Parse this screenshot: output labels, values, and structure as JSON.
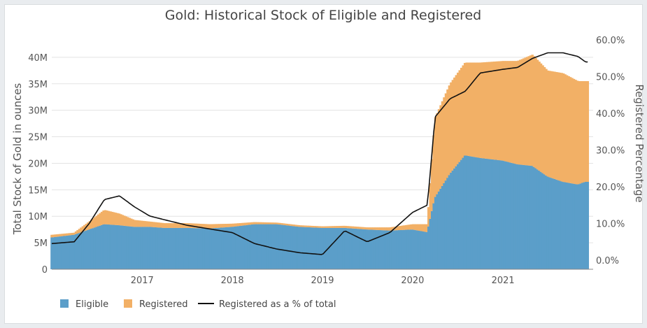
{
  "chart_data": {
    "type": "bar",
    "title": "Gold: Historical Stock of Eligible and Registered",
    "ylabel": "Total Stock of Gold in ounces",
    "y2label": "Registered Percentage",
    "ylim": [
      0,
      45000000
    ],
    "y2lim": [
      -0.025,
      0.625
    ],
    "x_tick_labels": [
      "2017",
      "2018",
      "2019",
      "2020",
      "2021"
    ],
    "y_tick_labels": [
      "0",
      "5M",
      "10M",
      "15M",
      "20M",
      "25M",
      "30M",
      "35M",
      "40M"
    ],
    "y2_tick_labels": [
      "0.0%",
      "10.0%",
      "20.0%",
      "30.0%",
      "40.0%",
      "50.0%",
      "60.0%"
    ],
    "legend": {
      "placement": "bottom-left",
      "items": [
        "Eligible",
        "Registered",
        "Registered as a % of total"
      ]
    },
    "colors": {
      "eligible": "#5b9ec9",
      "registered": "#f2b066",
      "line": "#111111"
    },
    "grid": true,
    "x": [
      "2016-01",
      "2016-04",
      "2016-06",
      "2016-08",
      "2016-10",
      "2016-12",
      "2017-02",
      "2017-04",
      "2017-07",
      "2017-10",
      "2018-01",
      "2018-04",
      "2018-07",
      "2018-10",
      "2019-01",
      "2019-04",
      "2019-07",
      "2019-10",
      "2020-01",
      "2020-03",
      "2020-04",
      "2020-06",
      "2020-08",
      "2020-10",
      "2021-01",
      "2021-03",
      "2021-05",
      "2021-07",
      "2021-09",
      "2021-11",
      "2021-12"
    ],
    "series": [
      {
        "name": "Eligible",
        "values": [
          6.0,
          6.5,
          7.5,
          8.5,
          8.3,
          8.0,
          8.0,
          7.8,
          7.8,
          7.7,
          8.0,
          8.5,
          8.5,
          8.0,
          7.8,
          7.8,
          7.5,
          7.3,
          7.5,
          7.0,
          13.5,
          18.0,
          21.5,
          21.0,
          20.5,
          19.8,
          19.5,
          17.5,
          16.5,
          16.0,
          16.5
        ]
      },
      {
        "name": "Registered",
        "values": [
          0.5,
          0.4,
          1.5,
          2.7,
          2.2,
          1.3,
          1.0,
          0.9,
          0.9,
          0.8,
          0.6,
          0.4,
          0.3,
          0.3,
          0.3,
          0.4,
          0.4,
          0.6,
          1.0,
          1.5,
          15.0,
          17.0,
          17.5,
          18.0,
          18.8,
          19.5,
          21.0,
          20.0,
          20.5,
          19.5,
          19.0
        ]
      },
      {
        "name": "Registered as a % of total",
        "values": [
          0.045,
          0.05,
          0.1,
          0.165,
          0.175,
          0.145,
          0.12,
          0.11,
          0.095,
          0.085,
          0.075,
          0.045,
          0.03,
          0.02,
          0.015,
          0.08,
          0.05,
          0.075,
          0.13,
          0.15,
          0.39,
          0.44,
          0.46,
          0.51,
          0.52,
          0.525,
          0.55,
          0.565,
          0.565,
          0.555,
          0.54
        ]
      }
    ]
  }
}
